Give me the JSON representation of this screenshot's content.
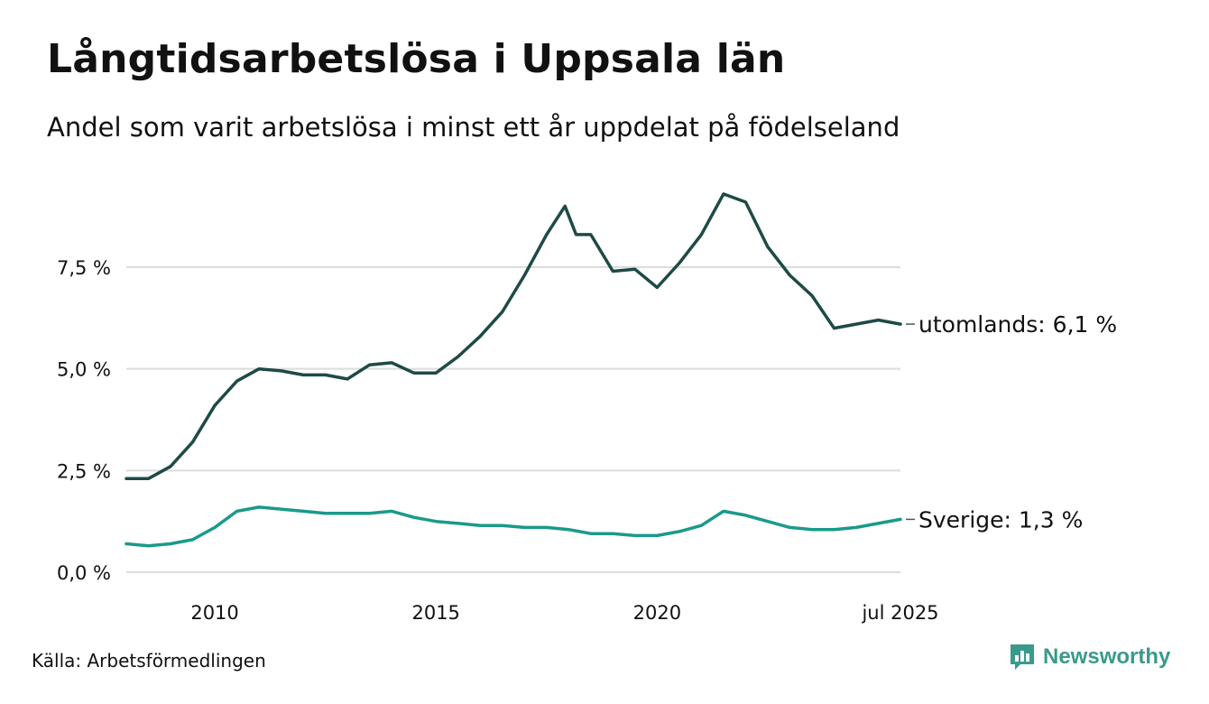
{
  "title": "Långtidsarbetslösa i Uppsala län",
  "subtitle": "Andel som varit arbetslösa i minst ett år uppdelat på födelseland",
  "source": "Källa: Arbetsförmedlingen",
  "brand": {
    "name": "Newsworthy",
    "icon": "newsworthy-logo-icon",
    "color": "#3a9a8c"
  },
  "chart_data": {
    "type": "line",
    "xlim": [
      "2008-01",
      "2025-07"
    ],
    "ylim": [
      0,
      9.5
    ],
    "grid": "horizontal",
    "y_ticks": [
      {
        "value": 0,
        "label": "0,0 %"
      },
      {
        "value": 2.5,
        "label": "2,5 %"
      },
      {
        "value": 5.0,
        "label": "5,0 %"
      },
      {
        "value": 7.5,
        "label": "7,5 %"
      }
    ],
    "x_ticks": [
      {
        "date": "2010-01",
        "label": "2010"
      },
      {
        "date": "2015-01",
        "label": "2015"
      },
      {
        "date": "2020-01",
        "label": "2020"
      },
      {
        "date": "2025-07",
        "label": "jul 2025"
      }
    ],
    "series": [
      {
        "name": "utomlands",
        "end_label": "utomlands: 6,1 %",
        "color": "#1e4a45",
        "points": [
          [
            "2008-01",
            2.3
          ],
          [
            "2008-07",
            2.3
          ],
          [
            "2009-01",
            2.6
          ],
          [
            "2009-07",
            3.2
          ],
          [
            "2010-01",
            4.1
          ],
          [
            "2010-07",
            4.7
          ],
          [
            "2011-01",
            5.0
          ],
          [
            "2011-07",
            4.95
          ],
          [
            "2012-01",
            4.85
          ],
          [
            "2012-07",
            4.85
          ],
          [
            "2013-01",
            4.75
          ],
          [
            "2013-07",
            5.1
          ],
          [
            "2014-01",
            5.15
          ],
          [
            "2014-07",
            4.9
          ],
          [
            "2015-01",
            4.9
          ],
          [
            "2015-07",
            5.3
          ],
          [
            "2016-01",
            5.8
          ],
          [
            "2016-07",
            6.4
          ],
          [
            "2017-01",
            7.3
          ],
          [
            "2017-07",
            8.3
          ],
          [
            "2017-12",
            9.0
          ],
          [
            "2018-03",
            8.3
          ],
          [
            "2018-07",
            8.3
          ],
          [
            "2019-01",
            7.4
          ],
          [
            "2019-07",
            7.45
          ],
          [
            "2020-01",
            7.0
          ],
          [
            "2020-07",
            7.6
          ],
          [
            "2021-01",
            8.3
          ],
          [
            "2021-07",
            9.3
          ],
          [
            "2022-01",
            9.1
          ],
          [
            "2022-07",
            8.0
          ],
          [
            "2023-01",
            7.3
          ],
          [
            "2023-07",
            6.8
          ],
          [
            "2024-01",
            6.0
          ],
          [
            "2024-07",
            6.1
          ],
          [
            "2025-01",
            6.2
          ],
          [
            "2025-07",
            6.1
          ]
        ]
      },
      {
        "name": "Sverige",
        "end_label": "Sverige: 1,3 %",
        "color": "#1a9a8a",
        "points": [
          [
            "2008-01",
            0.7
          ],
          [
            "2008-07",
            0.65
          ],
          [
            "2009-01",
            0.7
          ],
          [
            "2009-07",
            0.8
          ],
          [
            "2010-01",
            1.1
          ],
          [
            "2010-07",
            1.5
          ],
          [
            "2011-01",
            1.6
          ],
          [
            "2011-07",
            1.55
          ],
          [
            "2012-01",
            1.5
          ],
          [
            "2012-07",
            1.45
          ],
          [
            "2013-01",
            1.45
          ],
          [
            "2013-07",
            1.45
          ],
          [
            "2014-01",
            1.5
          ],
          [
            "2014-07",
            1.35
          ],
          [
            "2015-01",
            1.25
          ],
          [
            "2015-07",
            1.2
          ],
          [
            "2016-01",
            1.15
          ],
          [
            "2016-07",
            1.15
          ],
          [
            "2017-01",
            1.1
          ],
          [
            "2017-07",
            1.1
          ],
          [
            "2018-01",
            1.05
          ],
          [
            "2018-07",
            0.95
          ],
          [
            "2019-01",
            0.95
          ],
          [
            "2019-07",
            0.9
          ],
          [
            "2020-01",
            0.9
          ],
          [
            "2020-07",
            1.0
          ],
          [
            "2021-01",
            1.15
          ],
          [
            "2021-07",
            1.5
          ],
          [
            "2022-01",
            1.4
          ],
          [
            "2022-07",
            1.25
          ],
          [
            "2023-01",
            1.1
          ],
          [
            "2023-07",
            1.05
          ],
          [
            "2024-01",
            1.05
          ],
          [
            "2024-07",
            1.1
          ],
          [
            "2025-01",
            1.2
          ],
          [
            "2025-07",
            1.3
          ]
        ]
      }
    ]
  }
}
